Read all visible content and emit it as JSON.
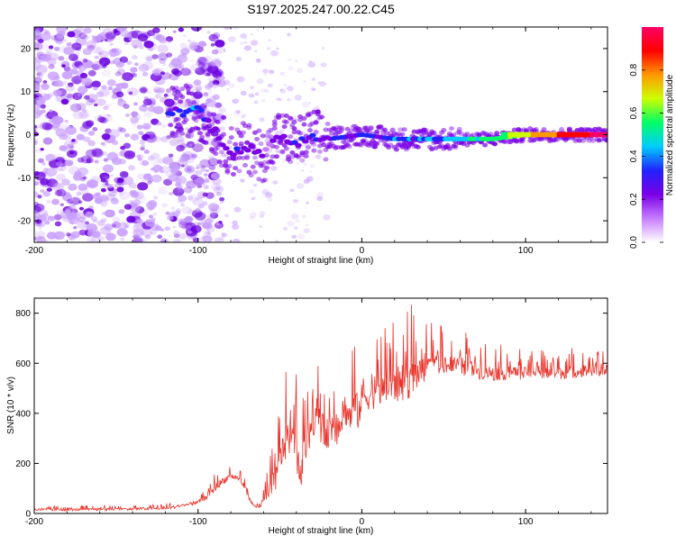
{
  "title": "S197.2025.247.00.22.C45",
  "chart_data": [
    {
      "type": "heatmap",
      "name": "spectrogram",
      "xlabel": "Height of straight line (km)",
      "ylabel": "Frequency (Hz)",
      "xlim": [
        -200,
        150
      ],
      "ylim": [
        -25,
        25
      ],
      "xticks": [
        -200,
        -100,
        0,
        100
      ],
      "yticks": [
        -20,
        -10,
        0,
        10,
        20
      ],
      "colorbar": {
        "label": "Normalized spectral amplitude",
        "range": [
          0,
          1
        ],
        "ticks": [
          "0.0",
          "0.2",
          "0.4",
          "0.6",
          "0.8"
        ],
        "colors": [
          "#ffffff",
          "#c77dff",
          "#7a00e6",
          "#2222ff",
          "#00ccff",
          "#00ff66",
          "#ccff00",
          "#ff9900",
          "#ff0000",
          "#ff0066"
        ]
      },
      "description_series": {
        "ridge_x": [
          -118,
          -100,
          -90,
          -80,
          -70,
          -60,
          -50,
          -40,
          -30,
          -20,
          0,
          20,
          40,
          60,
          80,
          100,
          120,
          150
        ],
        "ridge_freq": [
          5,
          6,
          1,
          -4,
          -3,
          -5,
          0,
          -2,
          0,
          -1,
          0,
          -1,
          -1,
          -1,
          -1,
          0,
          0,
          0
        ],
        "ridge_amplitude": [
          0.3,
          0.35,
          0.25,
          0.25,
          0.25,
          0.2,
          0.25,
          0.3,
          0.3,
          0.3,
          0.3,
          0.35,
          0.35,
          0.45,
          0.55,
          0.7,
          0.85,
          1.0
        ]
      }
    },
    {
      "type": "line",
      "name": "snr",
      "xlabel": "Height of straight line (km)",
      "ylabel": "SNR (10 * v/v)",
      "xlim": [
        -200,
        150
      ],
      "ylim": [
        0,
        860
      ],
      "xticks": [
        -200,
        -100,
        0,
        100
      ],
      "yticks": [
        0,
        200,
        400,
        600,
        800
      ],
      "series": [
        {
          "name": "SNR",
          "color": "#e8332a",
          "x": [
            -200,
            -180,
            -160,
            -140,
            -120,
            -110,
            -100,
            -95,
            -90,
            -85,
            -80,
            -78,
            -75,
            -72,
            -70,
            -67,
            -65,
            -62,
            -60,
            -57,
            -55,
            -52,
            -50,
            -47,
            -45,
            -43,
            -41,
            -39,
            -37,
            -35,
            -33,
            -31,
            -29,
            -27,
            -25,
            -22,
            -20,
            -17,
            -15,
            -12,
            -10,
            -7,
            -5,
            -2,
            0,
            5,
            10,
            15,
            20,
            25,
            30,
            35,
            40,
            45,
            50,
            55,
            60,
            65,
            70,
            80,
            90,
            100,
            110,
            120,
            130,
            140,
            150
          ],
          "y": [
            15,
            15,
            16,
            18,
            20,
            30,
            45,
            65,
            100,
            130,
            150,
            145,
            140,
            110,
            80,
            40,
            25,
            30,
            50,
            80,
            100,
            150,
            220,
            260,
            340,
            250,
            300,
            200,
            130,
            320,
            250,
            370,
            280,
            420,
            350,
            310,
            330,
            360,
            340,
            380,
            420,
            380,
            440,
            400,
            460,
            470,
            480,
            500,
            510,
            520,
            540,
            560,
            580,
            600,
            600,
            590,
            590,
            580,
            570,
            560,
            560,
            560,
            560,
            560,
            565,
            570,
            570
          ],
          "envelope": [
            30,
            30,
            35,
            35,
            40,
            55,
            75,
            110,
            160,
            190,
            200,
            190,
            190,
            150,
            120,
            60,
            40,
            60,
            120,
            200,
            280,
            350,
            460,
            520,
            660,
            500,
            710,
            420,
            280,
            600,
            560,
            550,
            520,
            600,
            620,
            550,
            580,
            650,
            620,
            640,
            700,
            640,
            720,
            680,
            700,
            690,
            720,
            750,
            800,
            820,
            860,
            760,
            760,
            770,
            780,
            760,
            740,
            720,
            700,
            680,
            670,
            660,
            660,
            660,
            665,
            665,
            665
          ]
        }
      ]
    }
  ]
}
